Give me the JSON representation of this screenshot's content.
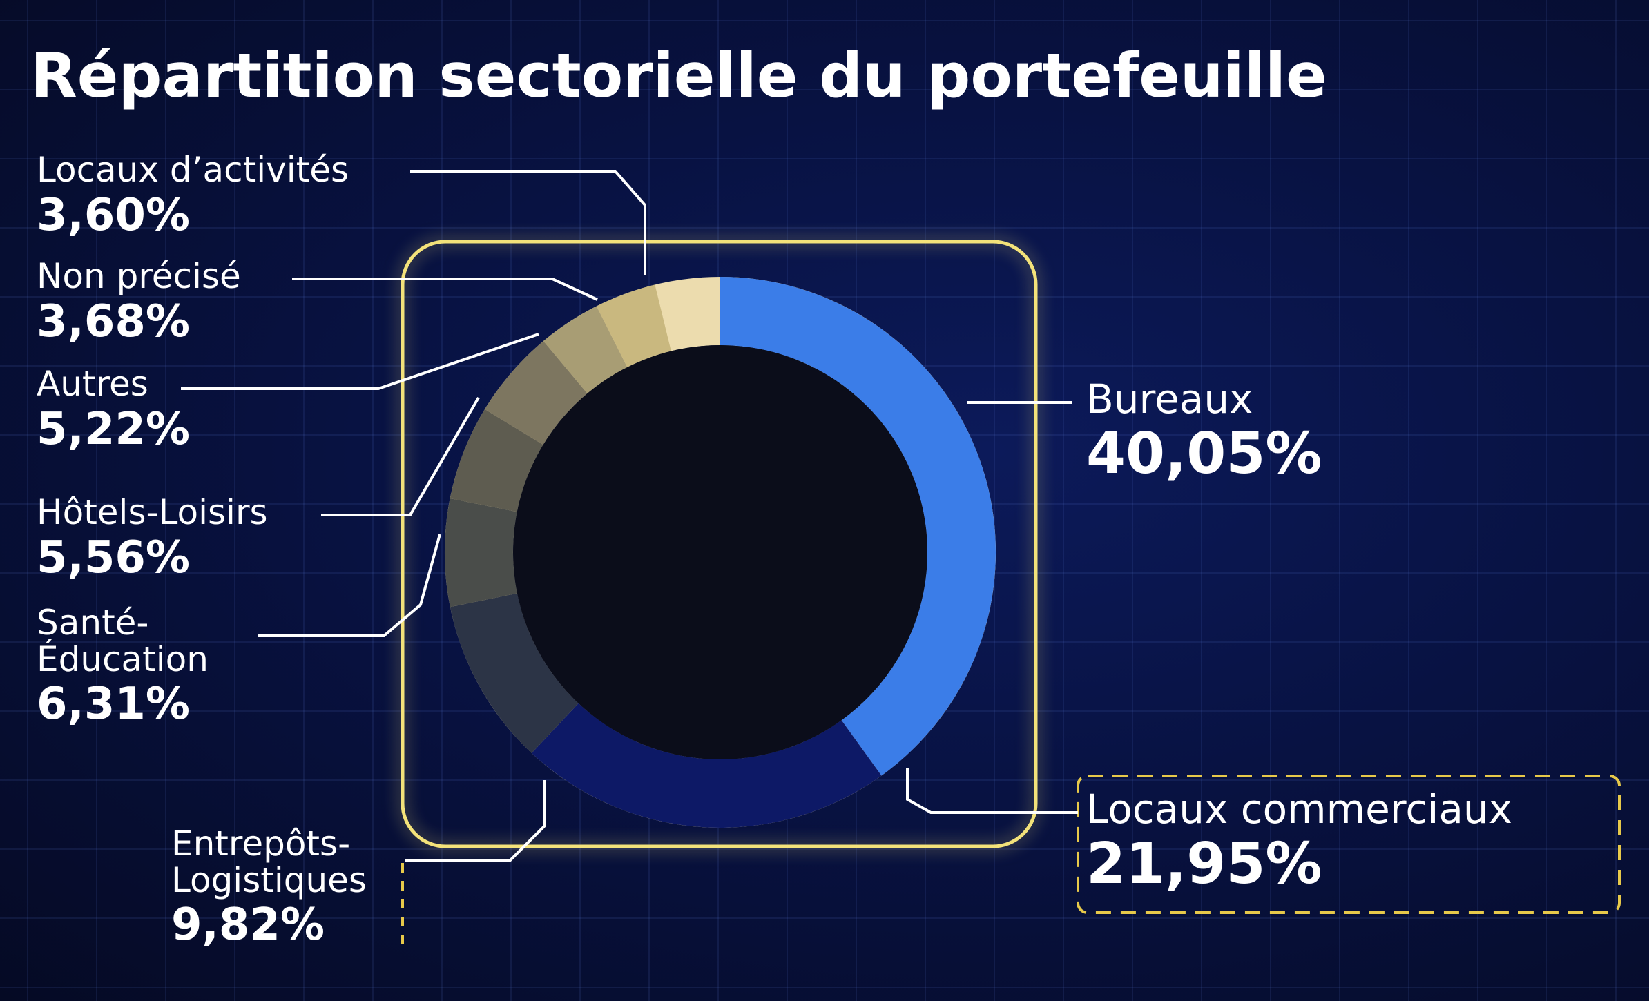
{
  "chart_data": {
    "type": "donut",
    "title": "Répartition sectorielle du portefeuille",
    "categories": [
      "Bureaux",
      "Locaux commerciaux",
      "Entrepôts-Logistiques",
      "Santé-Éducation",
      "Hôtels-Loisirs",
      "Autres",
      "Non précisé",
      "Locaux d’activités"
    ],
    "values": [
      40.05,
      21.95,
      9.82,
      6.31,
      5.56,
      5.22,
      3.68,
      3.6
    ],
    "value_labels": [
      "40,05%",
      "21,95%",
      "9,82%",
      "6,31%",
      "5,56%",
      "5,22%",
      "3,68%",
      "3,60%"
    ],
    "colors": [
      "#3b7de8",
      "#0d1966",
      "#2c3446",
      "#4a4d4a",
      "#5e5c50",
      "#7d7660",
      "#a89d74",
      "#c9b87f"
    ]
  }
}
